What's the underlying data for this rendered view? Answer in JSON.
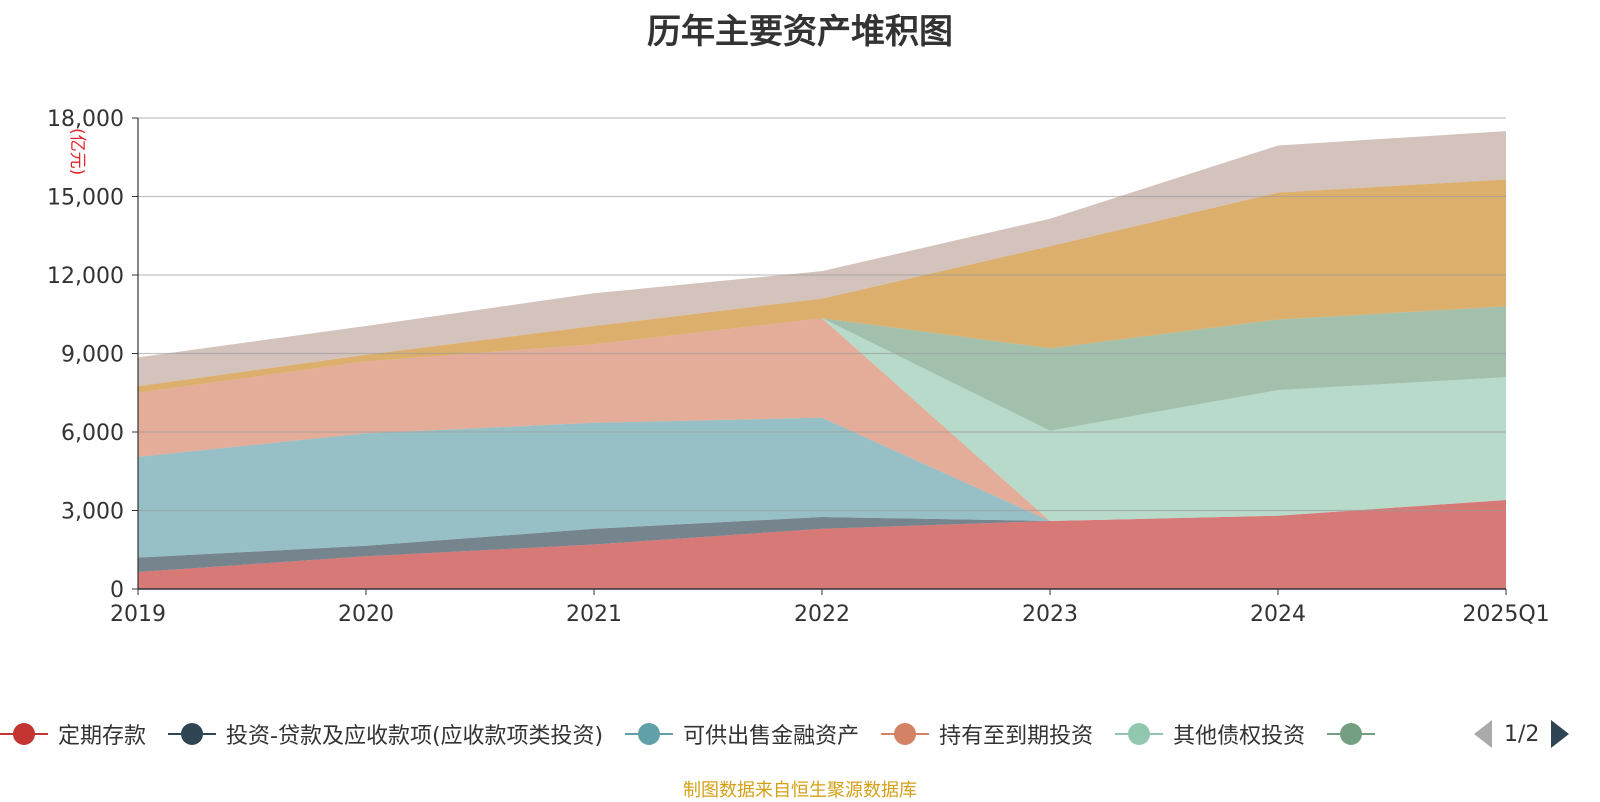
{
  "title": "历年主要资产堆积图",
  "source": "制图数据来自恒生聚源数据库",
  "legend_page": "1/2",
  "chart_data": {
    "type": "area",
    "stacked": true,
    "title": "历年主要资产堆积图",
    "unit_label": "(亿元)",
    "categories": [
      "2019",
      "2020",
      "2021",
      "2022",
      "2023",
      "2024",
      "2025Q1"
    ],
    "ylim": [
      0,
      18000
    ],
    "yticks": [
      0,
      3000,
      6000,
      9000,
      12000,
      15000,
      18000
    ],
    "ytick_labels": [
      "0",
      "3,000",
      "6,000",
      "9,000",
      "12,000",
      "15,000",
      "18,000"
    ],
    "grid": true,
    "legend_position": "bottom",
    "series": [
      {
        "name": "定期存款",
        "color": "#c23531",
        "legend_visible": true,
        "values": [
          650,
          1250,
          1700,
          2300,
          2600,
          2800,
          3400
        ]
      },
      {
        "name": "投资-贷款及应收款项(应收款项类投资)",
        "color": "#2f4554",
        "legend_visible": true,
        "values": [
          550,
          400,
          600,
          450,
          0,
          0,
          0
        ]
      },
      {
        "name": "可供出售金融资产",
        "color": "#61a0a8",
        "legend_visible": true,
        "values": [
          3850,
          4300,
          4050,
          3800,
          0,
          0,
          0
        ]
      },
      {
        "name": "持有至到期投资",
        "color": "#d48265",
        "legend_visible": true,
        "values": [
          2450,
          2750,
          3000,
          3800,
          0,
          0,
          0
        ]
      },
      {
        "name": "其他债权投资",
        "color": "#91c7ae",
        "legend_visible": true,
        "values": [
          0,
          0,
          0,
          0,
          3450,
          4800,
          4700
        ]
      },
      {
        "name": "",
        "color": "#749f83",
        "legend_visible": true,
        "values": [
          0,
          0,
          0,
          0,
          3150,
          2700,
          2700
        ]
      },
      {
        "name": "",
        "color": "#ca8622",
        "legend_visible": false,
        "values": [
          250,
          250,
          700,
          750,
          3900,
          4850,
          4850
        ]
      },
      {
        "name": "",
        "color": "#bda29a",
        "legend_visible": false,
        "values": [
          1100,
          1100,
          1250,
          1050,
          1050,
          1800,
          1850
        ]
      }
    ]
  }
}
